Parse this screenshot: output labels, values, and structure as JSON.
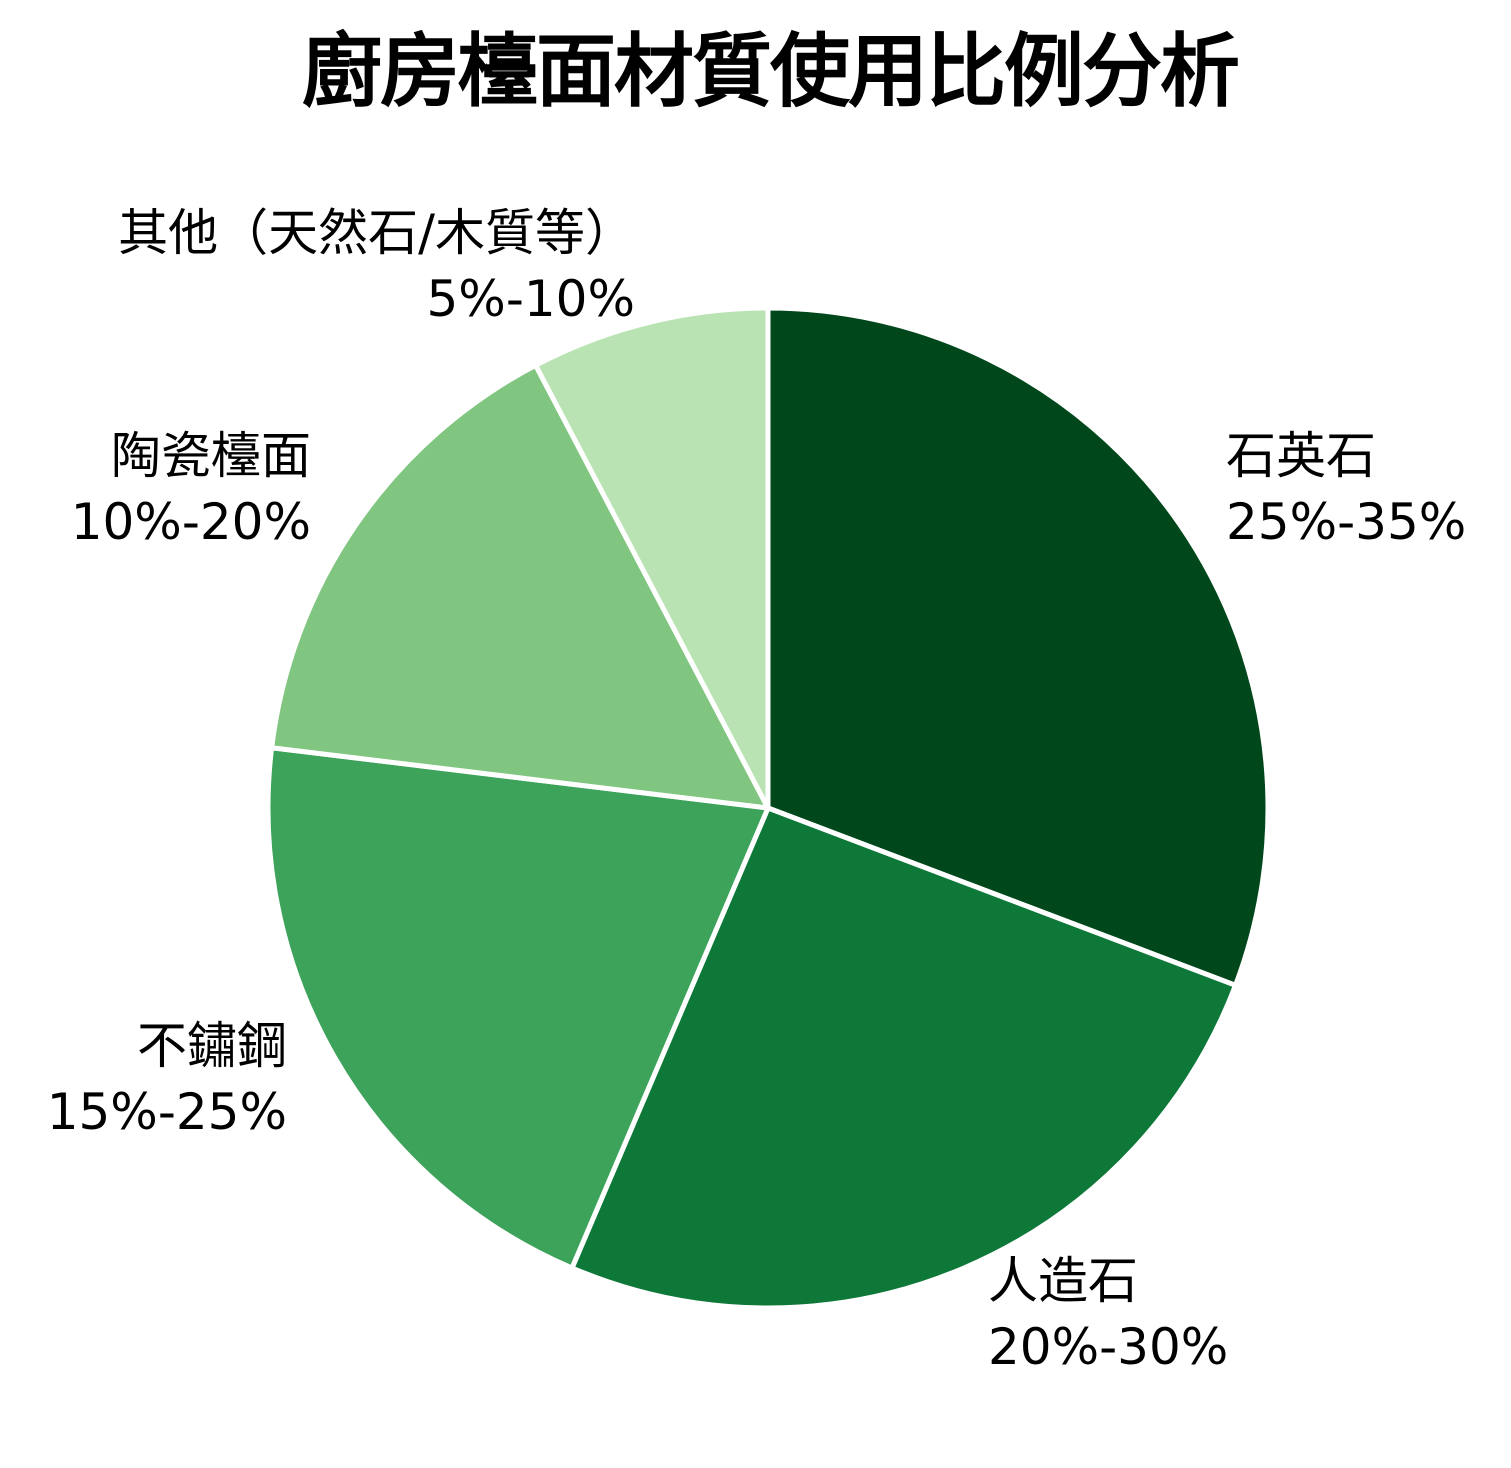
{
  "chart_data": {
    "type": "pie",
    "title": "廚房檯面材質使用比例分析",
    "categories": [
      "石英石",
      "人造石",
      "不鏽鋼",
      "陶瓷檯面",
      "其他（天然石/木質等）"
    ],
    "values": [
      30,
      25,
      20,
      15,
      7.5
    ],
    "range_labels": [
      "25%-35%",
      "20%-30%",
      "15%-25%",
      "10%-20%",
      "5%-10%"
    ],
    "colors": [
      "#00471b",
      "#0e7838",
      "#3da35a",
      "#80c680",
      "#b9e3b3"
    ],
    "start_angle": "12 o'clock",
    "direction": "clockwise",
    "legend": "none (labels outside slices)"
  },
  "labels": [
    {
      "name": "石英石",
      "range": "25%-35%"
    },
    {
      "name": "人造石",
      "range": "20%-30%"
    },
    {
      "name": "不鏽鋼",
      "range": "15%-25%"
    },
    {
      "name": "陶瓷檯面",
      "range": "10%-20%"
    },
    {
      "name": "其他（天然石/木質等）",
      "range": "5%-10%"
    }
  ]
}
